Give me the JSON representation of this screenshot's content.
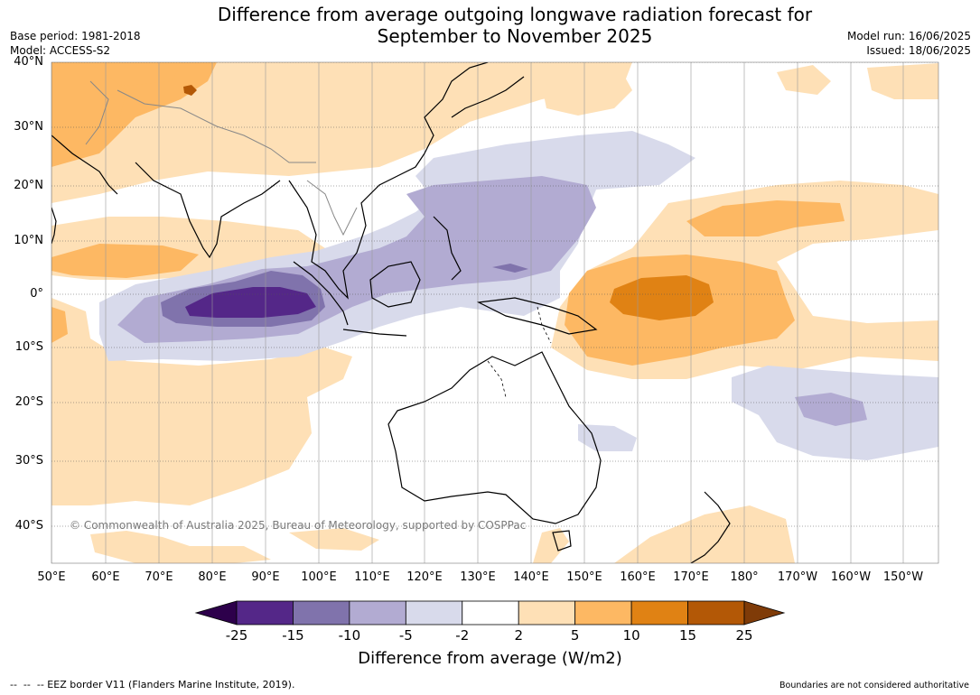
{
  "title_line1": "Difference from average outgoing longwave radiation forecast for",
  "title_line2": "September to November 2025",
  "base_period": "Base period: 1981-2018",
  "model": "Model: ACCESS-S2",
  "model_run": "Model run: 16/06/2025",
  "issued": "Issued: 18/06/2025",
  "copyright": "© Commonwealth of Australia 2025, Bureau of Meteorology, supported by COSPPac",
  "lat_labels": [
    "40°N",
    "30°N",
    "20°N",
    "10°N",
    "0°",
    "10°S",
    "20°S",
    "30°S",
    "40°S"
  ],
  "lon_labels": [
    "50°E",
    "60°E",
    "70°E",
    "80°E",
    "90°E",
    "100°E",
    "110°E",
    "120°E",
    "130°E",
    "140°E",
    "150°E",
    "160°E",
    "170°E",
    "180°",
    "170°W",
    "160°W",
    "150°W"
  ],
  "colorbar": {
    "title": "Difference from average (W/m2)",
    "ticks": [
      "-25",
      "-15",
      "-10",
      "-5",
      "-2",
      "2",
      "5",
      "10",
      "15",
      "25"
    ],
    "colors": [
      "#2d004b",
      "#542788",
      "#8073ac",
      "#b2abd2",
      "#d8daeb",
      "#ffffff",
      "#fee0b6",
      "#fdb863",
      "#e08214",
      "#b35806",
      "#7f3b08"
    ]
  },
  "footer_eez": "--  --  -- EEZ border V11 (Flanders Marine Institute, 2019).",
  "footer_boundaries": "Boundaries are not considered authoritative"
}
